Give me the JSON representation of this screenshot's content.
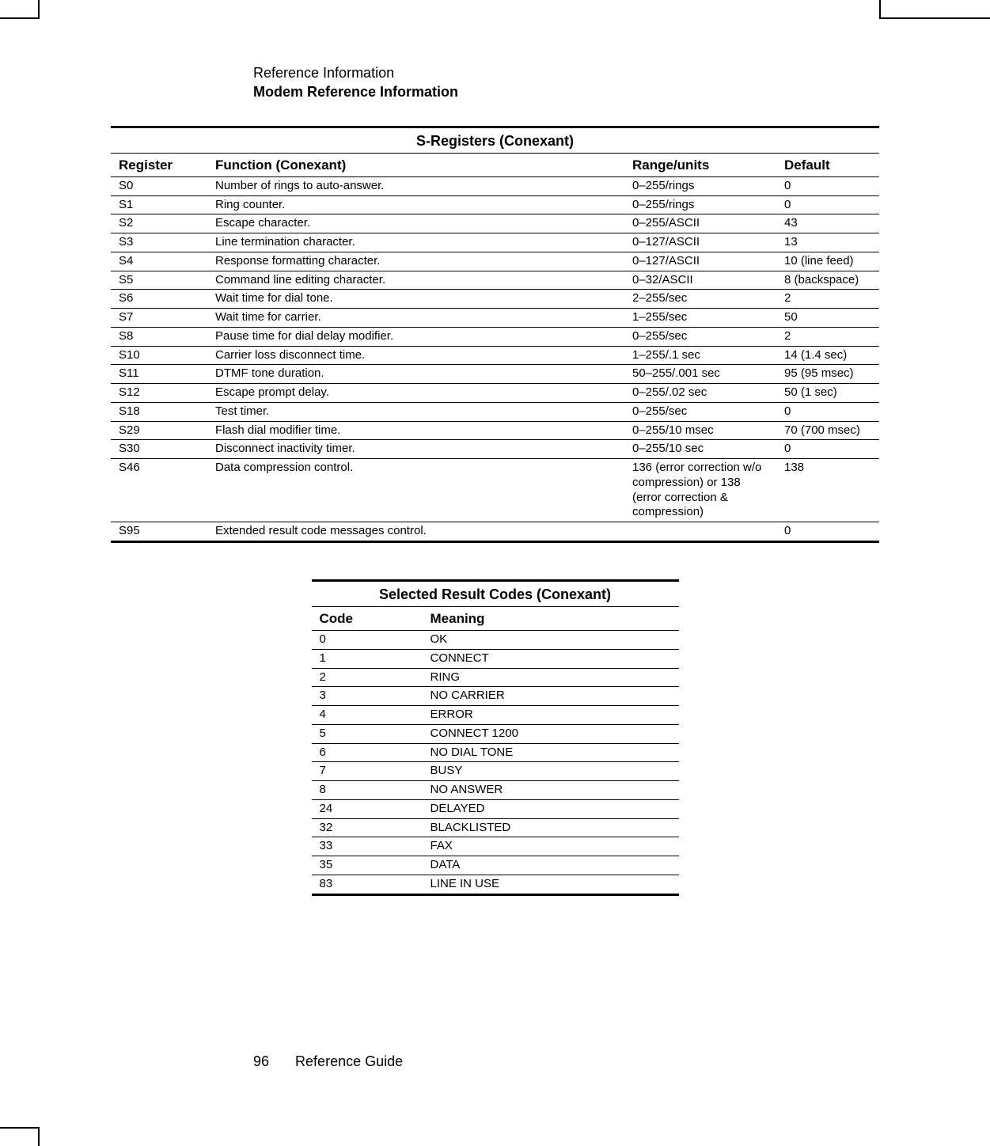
{
  "header": {
    "line1": "Reference Information",
    "line2": "Modem Reference Information"
  },
  "table1": {
    "title": "S-Registers (Conexant)",
    "columns": [
      "Register",
      "Function (Conexant)",
      "Range/units",
      "Default"
    ],
    "rows": [
      [
        "S0",
        "Number of rings to auto-answer.",
        "0–255/rings",
        "0"
      ],
      [
        "S1",
        "Ring counter.",
        "0–255/rings",
        "0"
      ],
      [
        "S2",
        "Escape character.",
        "0–255/ASCII",
        "43"
      ],
      [
        "S3",
        "Line termination character.",
        "0–127/ASCII",
        "13"
      ],
      [
        "S4",
        "Response formatting character.",
        "0–127/ASCII",
        "10 (line feed)"
      ],
      [
        "S5",
        "Command line editing character.",
        "0–32/ASCII",
        "8 (backspace)"
      ],
      [
        "S6",
        "Wait time for dial tone.",
        "2–255/sec",
        "2"
      ],
      [
        "S7",
        "Wait time for carrier.",
        "1–255/sec",
        "50"
      ],
      [
        "S8",
        "Pause time for dial delay modifier.",
        "0–255/sec",
        "2"
      ],
      [
        "S10",
        "Carrier loss disconnect time.",
        "1–255/.1 sec",
        "14 (1.4 sec)"
      ],
      [
        "S11",
        "DTMF tone duration.",
        "50–255/.001 sec",
        "95 (95 msec)"
      ],
      [
        "S12",
        "Escape prompt delay.",
        "0–255/.02 sec",
        "50 (1 sec)"
      ],
      [
        "S18",
        "Test timer.",
        "0–255/sec",
        "0"
      ],
      [
        "S29",
        "Flash dial modifier time.",
        "0–255/10 msec",
        "70 (700 msec)"
      ],
      [
        "S30",
        "Disconnect inactivity timer.",
        "0–255/10 sec",
        "0"
      ],
      [
        "S46",
        "Data compression control.",
        "136 (error correction w/o compression) or 138 (error correction & compression)",
        "138"
      ],
      [
        "S95",
        "Extended result code messages control.",
        "",
        "0"
      ]
    ]
  },
  "table2": {
    "title": "Selected Result Codes (Conexant)",
    "columns": [
      "Code",
      "Meaning"
    ],
    "rows": [
      [
        "0",
        "OK"
      ],
      [
        "1",
        "CONNECT"
      ],
      [
        "2",
        "RING"
      ],
      [
        "3",
        "NO CARRIER"
      ],
      [
        "4",
        "ERROR"
      ],
      [
        "5",
        "CONNECT 1200"
      ],
      [
        "6",
        "NO DIAL TONE"
      ],
      [
        "7",
        "BUSY"
      ],
      [
        "8",
        "NO ANSWER"
      ],
      [
        "24",
        "DELAYED"
      ],
      [
        "32",
        "BLACKLISTED"
      ],
      [
        "33",
        "FAX"
      ],
      [
        "35",
        "DATA"
      ],
      [
        "83",
        "LINE IN USE"
      ]
    ]
  },
  "footer": {
    "page_number": "96",
    "text": "Reference Guide"
  }
}
